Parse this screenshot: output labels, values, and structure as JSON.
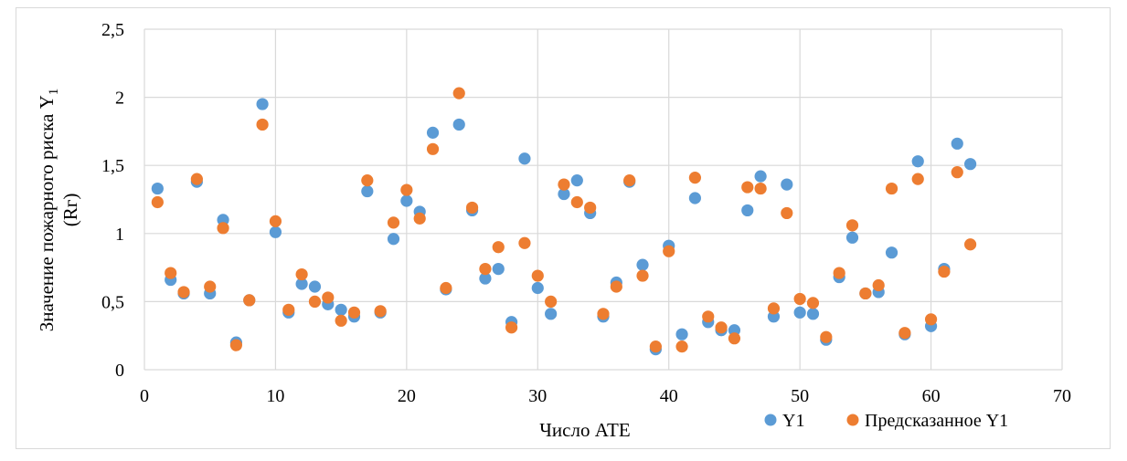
{
  "chart_data": {
    "type": "scatter",
    "title": "",
    "xlabel": "Число АТЕ",
    "ylabel_main": "Значение пожарного риска Y",
    "ylabel_sub": "1",
    "ylabel_unit": "(Rг)",
    "xlim": [
      0,
      70
    ],
    "ylim": [
      0,
      2.5
    ],
    "x_ticks": [
      {
        "value": 0,
        "label": "0"
      },
      {
        "value": 10,
        "label": "10"
      },
      {
        "value": 20,
        "label": "20"
      },
      {
        "value": 30,
        "label": "30"
      },
      {
        "value": 40,
        "label": "40"
      },
      {
        "value": 50,
        "label": "50"
      },
      {
        "value": 60,
        "label": "60"
      },
      {
        "value": 70,
        "label": "70"
      }
    ],
    "y_ticks": [
      {
        "value": 0,
        "label": "0"
      },
      {
        "value": 0.5,
        "label": "0,5"
      },
      {
        "value": 1,
        "label": "1"
      },
      {
        "value": 1.5,
        "label": "1,5"
      },
      {
        "value": 2,
        "label": "2"
      },
      {
        "value": 2.5,
        "label": "2,5"
      }
    ],
    "grid": true,
    "legend_position": "bottom-right",
    "series": [
      {
        "name": "Y1",
        "color": "#5B9BD5",
        "x": [
          1,
          2,
          3,
          4,
          5,
          6,
          7,
          8,
          9,
          10,
          11,
          12,
          13,
          14,
          15,
          16,
          17,
          18,
          19,
          20,
          21,
          22,
          23,
          24,
          25,
          26,
          27,
          28,
          29,
          30,
          31,
          32,
          33,
          34,
          35,
          36,
          37,
          38,
          39,
          40,
          41,
          42,
          43,
          44,
          45,
          46,
          47,
          48,
          49,
          50,
          51,
          52,
          53,
          54,
          55,
          56,
          57,
          58,
          59,
          60,
          61,
          62,
          63
        ],
        "y": [
          1.33,
          0.66,
          0.56,
          1.38,
          0.56,
          1.1,
          0.2,
          0.51,
          1.95,
          1.01,
          0.42,
          0.63,
          0.61,
          0.48,
          0.44,
          0.39,
          1.31,
          0.42,
          0.96,
          1.24,
          1.16,
          1.74,
          0.59,
          1.8,
          1.17,
          0.67,
          0.74,
          0.35,
          1.55,
          0.6,
          0.41,
          1.29,
          1.39,
          1.15,
          0.39,
          0.64,
          1.38,
          0.77,
          0.15,
          0.91,
          0.26,
          1.26,
          0.35,
          0.29,
          0.29,
          1.17,
          1.42,
          0.39,
          1.36,
          0.42,
          0.41,
          0.22,
          0.68,
          0.97,
          0.56,
          0.57,
          0.86,
          0.26,
          1.53,
          0.32,
          0.74,
          1.66,
          1.51
        ]
      },
      {
        "name": "Предсказанное Y1",
        "color": "#ED7D31",
        "x": [
          1,
          2,
          3,
          4,
          5,
          6,
          7,
          8,
          9,
          10,
          11,
          12,
          13,
          14,
          15,
          16,
          17,
          18,
          19,
          20,
          21,
          22,
          23,
          24,
          25,
          26,
          27,
          28,
          29,
          30,
          31,
          32,
          33,
          34,
          35,
          36,
          37,
          38,
          39,
          40,
          41,
          42,
          43,
          44,
          45,
          46,
          47,
          48,
          49,
          50,
          51,
          52,
          53,
          54,
          55,
          56,
          57,
          58,
          59,
          60,
          61,
          62,
          63
        ],
        "y": [
          1.23,
          0.71,
          0.57,
          1.4,
          0.61,
          1.04,
          0.18,
          0.51,
          1.8,
          1.09,
          0.44,
          0.7,
          0.5,
          0.53,
          0.36,
          0.42,
          1.39,
          0.43,
          1.08,
          1.32,
          1.11,
          1.62,
          0.6,
          2.03,
          1.19,
          0.74,
          0.9,
          0.31,
          0.93,
          0.69,
          0.5,
          1.36,
          1.23,
          1.19,
          0.41,
          0.61,
          1.39,
          0.69,
          0.17,
          0.87,
          0.17,
          1.41,
          0.39,
          0.31,
          0.23,
          1.34,
          1.33,
          0.45,
          1.15,
          0.52,
          0.49,
          0.24,
          0.71,
          1.06,
          0.56,
          0.62,
          1.33,
          0.27,
          1.4,
          0.37,
          0.72,
          1.45,
          0.92
        ]
      }
    ]
  }
}
